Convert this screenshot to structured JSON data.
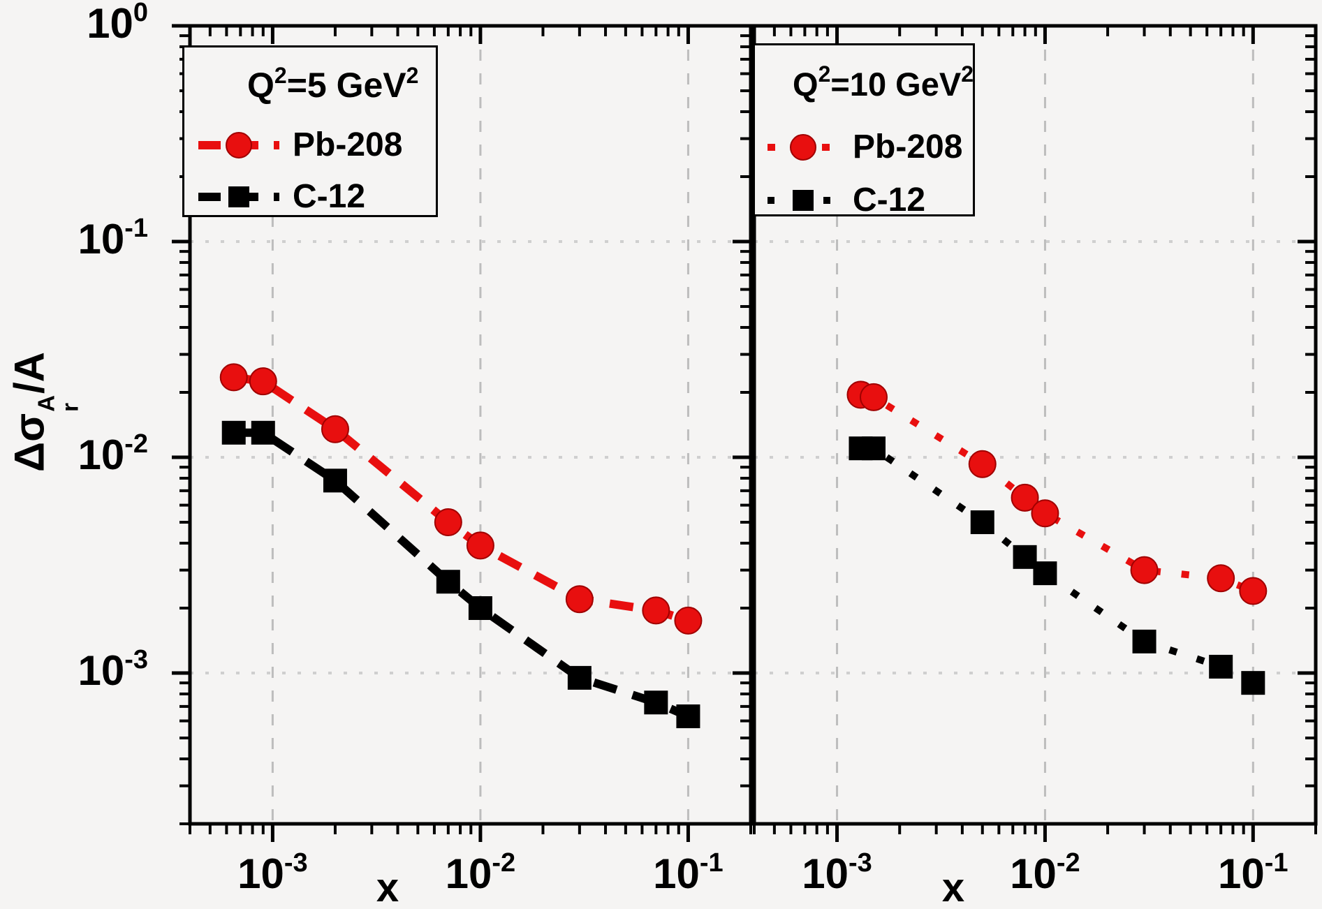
{
  "figure": {
    "ylabel_parts": {
      "prefix": "Δσ",
      "sub": "r",
      "sup": "A",
      "suffix": "/A"
    }
  },
  "chart_data": [
    {
      "type": "line",
      "panel": "left",
      "legend_title_parts": {
        "base": "Q",
        "sup1": "2",
        "mid": "=5 GeV",
        "sup2": "2"
      },
      "xlabel": "x",
      "xscale": "log",
      "yscale": "log",
      "xlim": [
        0.0004,
        0.2
      ],
      "ylim": [
        0.0002,
        1.0
      ],
      "x_tick_exponents": [
        -3,
        -2,
        -1
      ],
      "y_tick_exponents": [
        0,
        -1,
        -2,
        -3
      ],
      "grid": true,
      "legend_position": "top-left",
      "x": [
        0.00065,
        0.0009,
        0.002,
        0.007,
        0.01,
        0.03,
        0.07,
        0.1
      ],
      "series": [
        {
          "name": "Pb-208",
          "color": "#e80f0f",
          "marker": "circle",
          "line": "long-dash",
          "y": [
            0.0235,
            0.0225,
            0.0135,
            0.005,
            0.0039,
            0.0022,
            0.00195,
            0.00175
          ]
        },
        {
          "name": "C-12",
          "color": "#000000",
          "marker": "square",
          "line": "long-dash",
          "y": [
            0.013,
            0.013,
            0.0078,
            0.00265,
            0.002,
            0.00095,
            0.00073,
            0.00063
          ]
        }
      ]
    },
    {
      "type": "line",
      "panel": "right",
      "legend_title_parts": {
        "base": "Q",
        "sup1": "2",
        "mid": "=10 GeV",
        "sup2": "2"
      },
      "xlabel": "x",
      "xscale": "log",
      "yscale": "log",
      "xlim": [
        0.0004,
        0.2
      ],
      "ylim": [
        0.0002,
        1.0
      ],
      "x_tick_exponents": [
        -3,
        -2,
        -1
      ],
      "y_tick_exponents": [
        0,
        -1,
        -2,
        -3
      ],
      "grid": true,
      "legend_position": "top-left",
      "x": [
        0.0013,
        0.0015,
        0.005,
        0.008,
        0.01,
        0.03,
        0.07,
        0.1
      ],
      "series": [
        {
          "name": "Pb-208",
          "color": "#e80f0f",
          "marker": "circle",
          "line": "short-dash",
          "y": [
            0.0195,
            0.019,
            0.0093,
            0.0065,
            0.0055,
            0.003,
            0.00275,
            0.0024
          ]
        },
        {
          "name": "C-12",
          "color": "#000000",
          "marker": "square",
          "line": "short-dash",
          "y": [
            0.011,
            0.011,
            0.005,
            0.00345,
            0.0029,
            0.0014,
            0.00107,
            0.0009
          ]
        }
      ]
    }
  ]
}
